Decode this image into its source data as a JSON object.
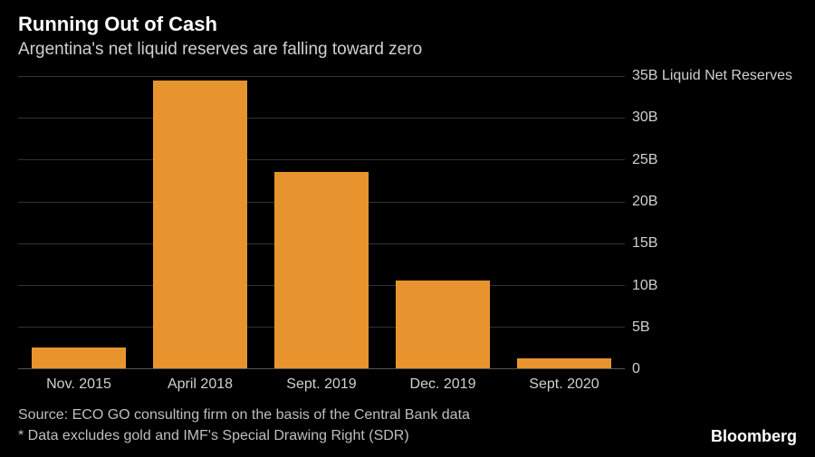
{
  "title": "Running Out of Cash",
  "subtitle": "Argentina's net liquid reserves are falling toward zero",
  "source": "Source: ECO GO consulting firm on the basis of the Central Bank data",
  "footnote": "* Data excludes gold and IMF's Special Drawing Right (SDR)",
  "brand": "Bloomberg",
  "chart": {
    "type": "bar",
    "background_color": "#000000",
    "bar_color": "#e8942e",
    "grid_color": "#333333",
    "axis_line_color": "#555555",
    "text_color": "#d0d0d0",
    "title_color": "#ffffff",
    "title_fontsize": 22,
    "subtitle_fontsize": 19,
    "label_fontsize": 16,
    "y_axis_label_suffix_first": " Liquid Net Reserves",
    "ylim": [
      0,
      35
    ],
    "yticks": [
      0,
      5,
      10,
      15,
      20,
      25,
      30,
      35
    ],
    "ytick_labels": [
      "0",
      "5B",
      "10B",
      "15B",
      "20B",
      "25B",
      "30B",
      "35B"
    ],
    "bar_width": 0.78,
    "categories": [
      "Nov. 2015",
      "April 2018",
      "Sept. 2019",
      "Dec. 2019",
      "Sept. 2020"
    ],
    "values": [
      2.5,
      34.5,
      23.5,
      10.5,
      1.2
    ]
  }
}
